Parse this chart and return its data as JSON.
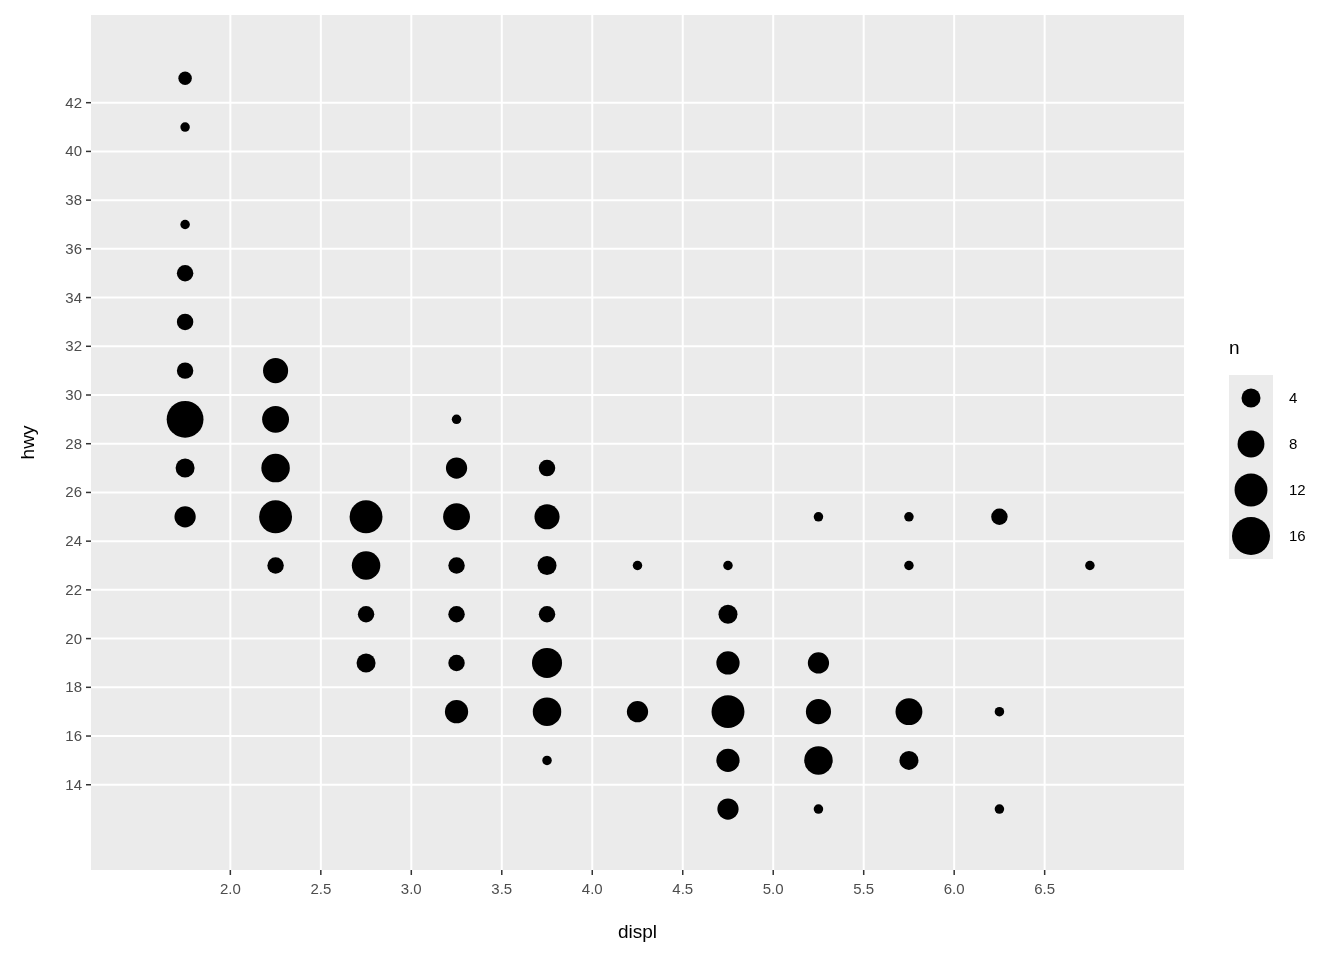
{
  "chart_data": {
    "type": "bubble",
    "xlabel": "displ",
    "ylabel": "hwy",
    "legend_title": "n",
    "grid": true,
    "color": "#000000",
    "xlim": [
      1.23,
      7.27
    ],
    "ylim": [
      10.5,
      45.6
    ],
    "xticks": [
      {
        "value": 2,
        "label": "2.0"
      },
      {
        "value": 2.5,
        "label": "2.5"
      },
      {
        "value": 3,
        "label": "3.0"
      },
      {
        "value": 3.5,
        "label": "3.5"
      },
      {
        "value": 4,
        "label": "4.0"
      },
      {
        "value": 4.5,
        "label": "4.5"
      },
      {
        "value": 5,
        "label": "5.0"
      },
      {
        "value": 5.5,
        "label": "5.5"
      },
      {
        "value": 6,
        "label": "6.0"
      },
      {
        "value": 6.5,
        "label": "6.5"
      }
    ],
    "yticks": [
      14,
      16,
      18,
      20,
      22,
      24,
      26,
      28,
      30,
      32,
      34,
      36,
      38,
      40,
      42
    ],
    "size_legend": [
      4,
      8,
      12,
      16
    ],
    "x": [
      1.75,
      1.75,
      1.75,
      1.75,
      1.75,
      1.75,
      1.75,
      1.75,
      1.75,
      2.25,
      2.25,
      2.25,
      2.25,
      2.25,
      2.75,
      2.75,
      2.75,
      2.75,
      3.25,
      3.25,
      3.25,
      3.25,
      3.25,
      3.25,
      3.25,
      3.75,
      3.75,
      3.75,
      3.75,
      3.75,
      3.75,
      3.75,
      4.25,
      4.25,
      4.75,
      4.75,
      4.75,
      4.75,
      4.75,
      4.75,
      5.25,
      5.25,
      5.25,
      5.25,
      5.25,
      5.75,
      5.75,
      5.75,
      5.75,
      6.25,
      6.25,
      6.25,
      6.75
    ],
    "values": [
      43,
      41,
      37,
      35,
      33,
      31,
      29,
      27,
      25,
      31,
      29,
      27,
      25,
      23,
      25,
      23,
      21,
      19,
      29,
      27,
      25,
      23,
      21,
      19,
      17,
      27,
      25,
      23,
      21,
      19,
      17,
      15,
      23,
      17,
      23,
      21,
      19,
      17,
      15,
      13,
      25,
      19,
      17,
      15,
      13,
      25,
      23,
      17,
      15,
      25,
      17,
      13,
      23
    ],
    "sizes": [
      2,
      1,
      1,
      3,
      3,
      3,
      15,
      4,
      5,
      7,
      8,
      9,
      12,
      3,
      12,
      9,
      3,
      4,
      1,
      5,
      8,
      3,
      3,
      3,
      6,
      3,
      7,
      4,
      3,
      10,
      9,
      1,
      1,
      5,
      1,
      4,
      6,
      12,
      6,
      5,
      1,
      5,
      7,
      9,
      1,
      1,
      1,
      8,
      4,
      3,
      1,
      1,
      1
    ]
  }
}
